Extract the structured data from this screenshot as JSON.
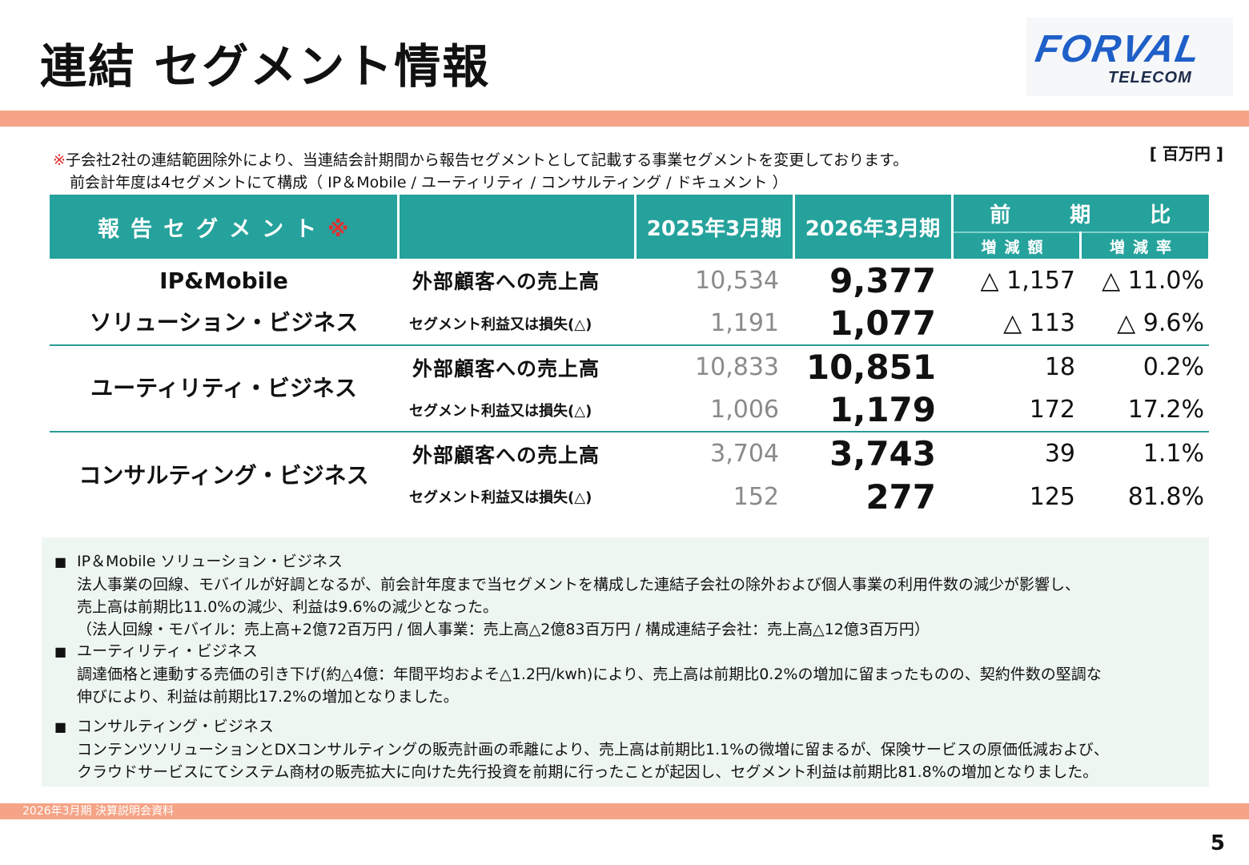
{
  "title": "連結 セグメント情報",
  "logo": {
    "main": "FORVAL",
    "sub": "TELECOM"
  },
  "unit": "[ 百万円 ]",
  "note": {
    "mark": "※",
    "line1": "子会社2社の連結範囲除外により、当連結会計期間から報告セグメントとして記載する事業セグメントを変更しております。",
    "line2": "前会計年度は4セグメントにて構成（ IP＆Mobile / ユーティリティ / コンサルティング / ドキュメント ）"
  },
  "table": {
    "header": {
      "segment": "報告セグメント",
      "segment_mark": "※",
      "year_prev": "2025年3月期",
      "year_curr": "2026年3月期",
      "compare": [
        "前",
        "期",
        "比"
      ],
      "diff": "増減額",
      "rate": "増減率"
    },
    "segments": [
      {
        "name_line1": "IP&Mobile",
        "name_line2": "ソリューション・ビジネス",
        "rows": [
          {
            "metric": "外部顧客への売上高",
            "prev": "10,534",
            "curr": "9,377",
            "diff": "△ 1,157",
            "rate": "△ 11.0%"
          },
          {
            "metric": "セグメント利益又は損失(△)",
            "prev": "1,191",
            "curr": "1,077",
            "diff": "△ 113",
            "rate": "△ 9.6%"
          }
        ]
      },
      {
        "name_line1": "ユーティリティ・ビジネス",
        "name_line2": "",
        "rows": [
          {
            "metric": "外部顧客への売上高",
            "prev": "10,833",
            "curr": "10,851",
            "diff": "18",
            "rate": "0.2%"
          },
          {
            "metric": "セグメント利益又は損失(△)",
            "prev": "1,006",
            "curr": "1,179",
            "diff": "172",
            "rate": "17.2%"
          }
        ]
      },
      {
        "name_line1": "コンサルティング・ビジネス",
        "name_line2": "",
        "rows": [
          {
            "metric": "外部顧客への売上高",
            "prev": "3,704",
            "curr": "3,743",
            "diff": "39",
            "rate": "1.1%"
          },
          {
            "metric": "セグメント利益又は損失(△)",
            "prev": "152",
            "curr": "277",
            "diff": "125",
            "rate": "81.8%"
          }
        ]
      }
    ]
  },
  "commentary": [
    {
      "head": "IP＆Mobile ソリューション・ビジネス",
      "lines": [
        "法人事業の回線、モバイルが好調となるが、前会計年度まで当セグメントを構成した連結子会社の除外および個人事業の利用件数の減少が影響し、",
        "売上高は前期比11.0%の減少、利益は9.6%の減少となった。",
        "（法人回線・モバイル：売上高+2億72百万円 / 個人事業：売上高△2億83百万円 / 構成連結子会社：売上高△12億3百万円）"
      ]
    },
    {
      "head": "ユーティリティ・ビジネス",
      "lines": [
        "調達価格と連動する売価の引き下げ(約△4億：年間平均およそ△1.2円/kwh)により、売上高は前期比0.2%の増加に留まったものの、契約件数の堅調な",
        "伸びにより、利益は前期比17.2%の増加となりました。"
      ]
    },
    {
      "head": "コンサルティング・ビジネス",
      "lines": [
        "コンテンツソリューションとDXコンサルティングの販売計画の乖離により、売上高は前期比1.1%の微増に留まるが、保険サービスの原価低減および、",
        "クラウドサービスにてシステム商材の販売拡大に向けた先行投資を前期に行ったことが起因し、セグメント利益は前期比81.8%の増加となりました。"
      ]
    }
  ],
  "footer": "2026年3月期 決算説明会資料",
  "page_number": "5",
  "colors": {
    "header_teal": "#25a29c",
    "accent_bar": "#f5a487",
    "mark_red": "#e03030",
    "commentary_bg": "#eef6f1"
  }
}
